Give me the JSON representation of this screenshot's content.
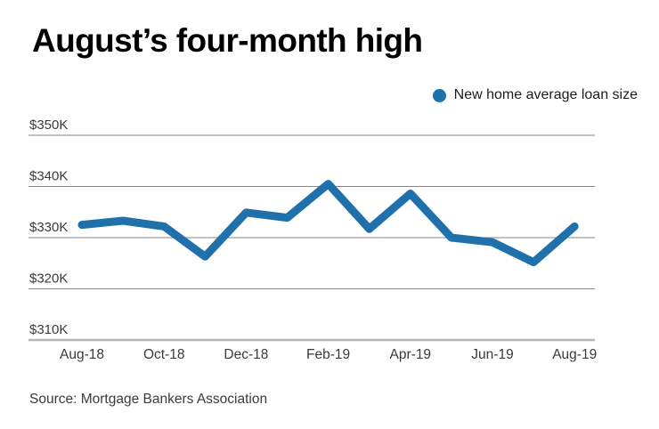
{
  "header": {
    "title": "August’s four-month high"
  },
  "legend": {
    "label": "New home average loan size",
    "marker_color": "#2070ac"
  },
  "footer": {
    "source": "Source: Mortgage Bankers Association"
  },
  "colors": {
    "line": "#2070ac",
    "gridline": "#858585",
    "axis_line": "#b5b5b5",
    "title_text": "#000000",
    "tick_text": "#3a3a3a",
    "source_text": "#3b3b3b",
    "background": "#ffffff"
  },
  "chart_data": {
    "type": "line",
    "title": "August’s four-month high",
    "legend_entries": [
      "New home average loan size"
    ],
    "legend_position": "top-right",
    "x": [
      "Aug-18",
      "Sep-18",
      "Oct-18",
      "Nov-18",
      "Dec-18",
      "Jan-19",
      "Feb-19",
      "Mar-19",
      "Apr-19",
      "May-19",
      "Jun-19",
      "Jul-19",
      "Aug-19"
    ],
    "series": [
      {
        "name": "New home average loan size",
        "unit": "USD thousands",
        "values": [
          332.5,
          333.3,
          332.2,
          326.3,
          334.9,
          333.9,
          340.5,
          331.7,
          338.6,
          330.0,
          329.1,
          325.2,
          332.2
        ]
      }
    ],
    "x_tick_labels": [
      "Aug-18",
      "Oct-18",
      "Dec-18",
      "Feb-19",
      "Apr-19",
      "Jun-19",
      "Aug-19"
    ],
    "y_ticks": [
      {
        "label": "$350K",
        "value": 350
      },
      {
        "label": "$340K",
        "value": 340
      },
      {
        "label": "$330K",
        "value": 330
      },
      {
        "label": "$320K",
        "value": 320
      },
      {
        "label": "$310K",
        "value": 310
      }
    ],
    "ylim": [
      310,
      350
    ],
    "grid": "horizontal",
    "xlabel": "",
    "ylabel": "",
    "source": "Source: Mortgage Bankers Association"
  }
}
